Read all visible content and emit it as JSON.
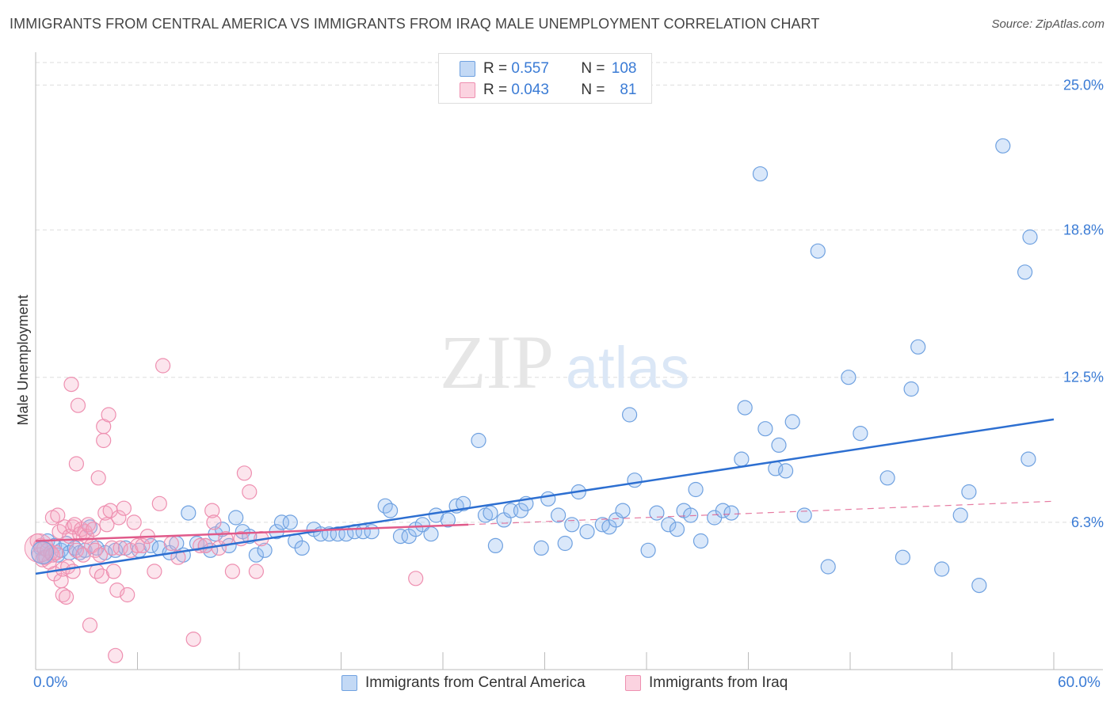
{
  "title": "IMMIGRANTS FROM CENTRAL AMERICA VS IMMIGRANTS FROM IRAQ MALE UNEMPLOYMENT CORRELATION CHART",
  "source": "Source: ZipAtlas.com",
  "watermark": {
    "zip": "ZIP",
    "atlas": "atlas"
  },
  "stats": [
    {
      "r_label": "R =",
      "r_value": "0.557",
      "n_label": "N =",
      "n_value": "108",
      "color": "#a8c8f0"
    },
    {
      "r_label": "R =",
      "r_value": "0.043",
      "n_label": "N =",
      "n_value": "81",
      "color": "#f5b8cc"
    }
  ],
  "legend": [
    {
      "label": "Immigrants from Central America",
      "color": "#a8c8f0"
    },
    {
      "label": "Immigrants from Iraq",
      "color": "#f5b8cc"
    }
  ],
  "x_axis": {
    "min_label": "0.0%",
    "max_label": "60.0%"
  },
  "chart_data": {
    "type": "scatter",
    "title": "IMMIGRANTS FROM CENTRAL AMERICA VS IMMIGRANTS FROM IRAQ MALE UNEMPLOYMENT CORRELATION CHART",
    "xlabel": "",
    "ylabel": "Male Unemployment",
    "xlim": [
      0,
      60
    ],
    "ylim": [
      0,
      26.2
    ],
    "y_ticks": [
      6.3,
      12.5,
      18.8,
      25.0
    ],
    "y_tick_labels": [
      "6.3%",
      "12.5%",
      "18.8%",
      "25.0%"
    ],
    "grid": "dashed horizontal",
    "series": [
      {
        "name": "Immigrants from Central America",
        "color": "#6fa1e0",
        "trend": {
          "x": [
            0,
            60
          ],
          "y": [
            4.1,
            10.7
          ],
          "style": "solid",
          "color": "#2d6fd1"
        },
        "points": [
          [
            0.3,
            5.2
          ],
          [
            0.5,
            4.8
          ],
          [
            0.7,
            5.5
          ],
          [
            0.9,
            5.0
          ],
          [
            1.1,
            5.3
          ],
          [
            1.3,
            4.9
          ],
          [
            1.5,
            5.1
          ],
          [
            1.8,
            5.4
          ],
          [
            2.0,
            5.0
          ],
          [
            2.3,
            5.2
          ],
          [
            2.6,
            5.0
          ],
          [
            2.9,
            5.1
          ],
          [
            3.2,
            6.1
          ],
          [
            3.6,
            5.2
          ],
          [
            4.1,
            5.0
          ],
          [
            4.7,
            5.1
          ],
          [
            5.3,
            5.2
          ],
          [
            6.1,
            5.1
          ],
          [
            6.8,
            5.3
          ],
          [
            7.3,
            5.2
          ],
          [
            7.9,
            5.0
          ],
          [
            8.3,
            5.4
          ],
          [
            8.7,
            4.9
          ],
          [
            9.0,
            6.7
          ],
          [
            9.5,
            5.4
          ],
          [
            10.0,
            5.3
          ],
          [
            10.3,
            5.1
          ],
          [
            10.6,
            5.8
          ],
          [
            11.0,
            6.0
          ],
          [
            11.4,
            5.3
          ],
          [
            11.8,
            6.5
          ],
          [
            12.2,
            5.9
          ],
          [
            12.6,
            5.7
          ],
          [
            13.0,
            4.9
          ],
          [
            13.5,
            5.1
          ],
          [
            14.2,
            5.9
          ],
          [
            14.5,
            6.3
          ],
          [
            15.0,
            6.3
          ],
          [
            15.3,
            5.5
          ],
          [
            15.7,
            5.2
          ],
          [
            16.4,
            6.0
          ],
          [
            16.8,
            5.8
          ],
          [
            17.3,
            5.8
          ],
          [
            17.8,
            5.8
          ],
          [
            18.3,
            5.8
          ],
          [
            18.8,
            5.9
          ],
          [
            19.3,
            5.9
          ],
          [
            19.8,
            5.9
          ],
          [
            20.6,
            7.0
          ],
          [
            20.9,
            6.8
          ],
          [
            21.5,
            5.7
          ],
          [
            22.0,
            5.7
          ],
          [
            22.4,
            6.0
          ],
          [
            22.8,
            6.2
          ],
          [
            23.3,
            5.8
          ],
          [
            23.6,
            6.6
          ],
          [
            24.3,
            6.4
          ],
          [
            24.8,
            7.0
          ],
          [
            25.2,
            7.1
          ],
          [
            26.1,
            9.8
          ],
          [
            26.5,
            6.6
          ],
          [
            26.8,
            6.7
          ],
          [
            27.1,
            5.3
          ],
          [
            27.6,
            6.4
          ],
          [
            28.0,
            6.8
          ],
          [
            28.6,
            6.8
          ],
          [
            28.9,
            7.1
          ],
          [
            29.8,
            5.2
          ],
          [
            30.2,
            7.3
          ],
          [
            30.8,
            6.6
          ],
          [
            31.2,
            5.4
          ],
          [
            31.6,
            6.2
          ],
          [
            32.0,
            7.6
          ],
          [
            32.5,
            5.9
          ],
          [
            33.4,
            6.2
          ],
          [
            33.8,
            6.1
          ],
          [
            34.2,
            6.4
          ],
          [
            34.6,
            6.8
          ],
          [
            35.0,
            10.9
          ],
          [
            35.3,
            8.1
          ],
          [
            36.1,
            5.1
          ],
          [
            36.6,
            6.7
          ],
          [
            37.3,
            6.2
          ],
          [
            37.8,
            6.0
          ],
          [
            38.2,
            6.8
          ],
          [
            38.6,
            6.6
          ],
          [
            38.9,
            7.7
          ],
          [
            39.2,
            5.5
          ],
          [
            40.0,
            6.5
          ],
          [
            40.5,
            6.8
          ],
          [
            41.0,
            6.7
          ],
          [
            41.6,
            9.0
          ],
          [
            41.8,
            11.2
          ],
          [
            42.7,
            21.2
          ],
          [
            43.0,
            10.3
          ],
          [
            43.6,
            8.6
          ],
          [
            43.8,
            9.6
          ],
          [
            44.2,
            8.5
          ],
          [
            44.6,
            10.6
          ],
          [
            45.3,
            6.6
          ],
          [
            46.1,
            17.9
          ],
          [
            46.7,
            4.4
          ],
          [
            47.9,
            12.5
          ],
          [
            48.6,
            10.1
          ],
          [
            50.2,
            8.2
          ],
          [
            51.1,
            4.8
          ],
          [
            51.6,
            12.0
          ],
          [
            52.0,
            13.8
          ],
          [
            53.4,
            4.3
          ],
          [
            54.5,
            6.6
          ],
          [
            55.0,
            7.6
          ],
          [
            55.6,
            3.6
          ],
          [
            57.0,
            22.4
          ],
          [
            58.3,
            17.0
          ],
          [
            58.5,
            9.0
          ],
          [
            58.6,
            18.5
          ]
        ]
      },
      {
        "name": "Immigrants from Iraq",
        "color": "#ee8fb0",
        "trend": {
          "x": [
            0,
            25.5
          ],
          "y": [
            5.5,
            6.2
          ],
          "style": "solid",
          "color": "#e05a8a",
          "extension": {
            "x": [
              25.5,
              60
            ],
            "y": [
              6.2,
              7.2
            ],
            "style": "dashed"
          }
        },
        "points": [
          [
            0.1,
            5.5
          ],
          [
            0.2,
            4.9
          ],
          [
            0.3,
            5.3
          ],
          [
            0.4,
            4.7
          ],
          [
            0.5,
            5.2
          ],
          [
            0.6,
            4.8
          ],
          [
            0.7,
            5.1
          ],
          [
            0.8,
            4.6
          ],
          [
            0.9,
            5.0
          ],
          [
            1.0,
            4.9
          ],
          [
            1.0,
            6.5
          ],
          [
            1.1,
            4.1
          ],
          [
            1.2,
            5.0
          ],
          [
            1.3,
            6.6
          ],
          [
            1.4,
            5.9
          ],
          [
            1.5,
            3.8
          ],
          [
            1.6,
            4.3
          ],
          [
            1.6,
            3.2
          ],
          [
            1.7,
            6.1
          ],
          [
            1.8,
            3.1
          ],
          [
            1.9,
            4.4
          ],
          [
            2.0,
            5.7
          ],
          [
            2.1,
            12.2
          ],
          [
            2.2,
            6.1
          ],
          [
            2.2,
            4.2
          ],
          [
            2.3,
            6.2
          ],
          [
            2.4,
            5.1
          ],
          [
            2.4,
            8.8
          ],
          [
            2.5,
            11.3
          ],
          [
            2.6,
            5.8
          ],
          [
            2.7,
            6.0
          ],
          [
            2.8,
            4.9
          ],
          [
            2.9,
            5.9
          ],
          [
            3.0,
            5.7
          ],
          [
            3.1,
            6.2
          ],
          [
            3.2,
            1.9
          ],
          [
            3.3,
            5.3
          ],
          [
            3.4,
            6.0
          ],
          [
            3.5,
            5.1
          ],
          [
            3.6,
            4.2
          ],
          [
            3.7,
            8.2
          ],
          [
            3.8,
            4.9
          ],
          [
            3.9,
            4.0
          ],
          [
            4.0,
            10.4
          ],
          [
            4.0,
            9.8
          ],
          [
            4.1,
            6.7
          ],
          [
            4.2,
            6.2
          ],
          [
            4.3,
            10.9
          ],
          [
            4.4,
            6.8
          ],
          [
            4.5,
            5.2
          ],
          [
            4.6,
            4.2
          ],
          [
            4.7,
            0.6
          ],
          [
            4.8,
            3.4
          ],
          [
            4.9,
            6.5
          ],
          [
            5.0,
            5.2
          ],
          [
            5.2,
            6.9
          ],
          [
            5.4,
            3.2
          ],
          [
            5.6,
            5.1
          ],
          [
            5.8,
            6.3
          ],
          [
            6.0,
            5.3
          ],
          [
            6.3,
            5.3
          ],
          [
            6.6,
            5.7
          ],
          [
            7.0,
            4.2
          ],
          [
            7.3,
            7.1
          ],
          [
            7.5,
            13.0
          ],
          [
            8.0,
            5.4
          ],
          [
            8.4,
            4.8
          ],
          [
            9.3,
            1.3
          ],
          [
            9.7,
            5.3
          ],
          [
            10.0,
            5.3
          ],
          [
            10.4,
            6.8
          ],
          [
            10.5,
            6.3
          ],
          [
            10.8,
            5.2
          ],
          [
            11.2,
            5.6
          ],
          [
            11.6,
            4.2
          ],
          [
            12.1,
            5.6
          ],
          [
            12.3,
            8.4
          ],
          [
            12.6,
            7.6
          ],
          [
            13.0,
            4.2
          ],
          [
            13.3,
            5.6
          ],
          [
            22.4,
            3.9
          ]
        ]
      }
    ]
  }
}
